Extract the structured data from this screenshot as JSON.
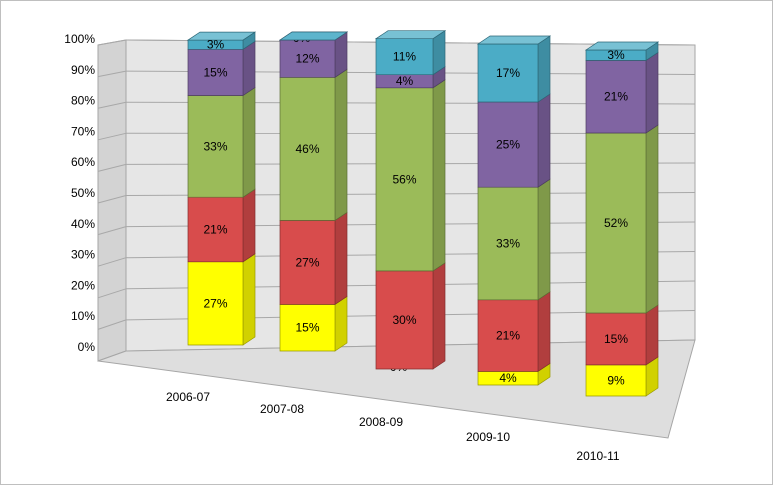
{
  "chart_data": {
    "type": "bar",
    "stacked": true,
    "percent_stacked": true,
    "three_d": true,
    "categories": [
      "2006-07",
      "2007-08",
      "2008-09",
      "2009-10",
      "2010-11"
    ],
    "series": [
      {
        "color": "#ffff00",
        "values": [
          27,
          15,
          0,
          4,
          9
        ]
      },
      {
        "color": "#d84c4c",
        "values": [
          21,
          27,
          30,
          21,
          15
        ]
      },
      {
        "color": "#9bbb59",
        "values": [
          33,
          46,
          56,
          33,
          52
        ]
      },
      {
        "color": "#8064a2",
        "values": [
          15,
          12,
          4,
          25,
          21
        ]
      },
      {
        "color": "#4bacc6",
        "values": [
          3,
          0,
          11,
          17,
          3
        ]
      }
    ],
    "y_ticks": [
      "0%",
      "10%",
      "20%",
      "30%",
      "40%",
      "50%",
      "60%",
      "70%",
      "80%",
      "90%",
      "100%"
    ],
    "ylim": [
      0,
      100
    ],
    "grid": true,
    "legend": "none"
  }
}
